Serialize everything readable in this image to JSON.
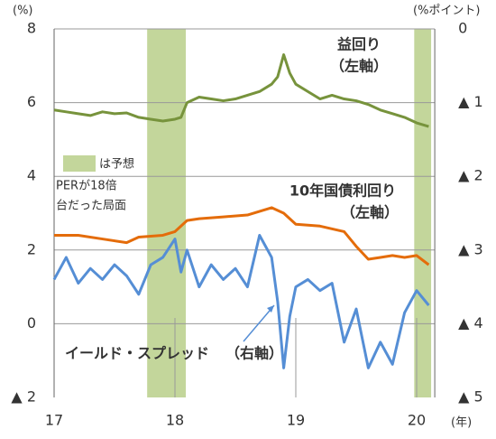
{
  "chart_data": {
    "type": "line",
    "y_unit": "(%)",
    "y2_unit": "(%ポイント)",
    "x_unit": "(年)",
    "xlim": [
      17,
      20.15
    ],
    "xticks": [
      17,
      18,
      19,
      20
    ],
    "ylim": [
      -2,
      8
    ],
    "yticks": [
      {
        "value": -2,
        "label": "▲ 2"
      },
      0,
      2,
      4,
      6,
      8
    ],
    "y2lim": [
      -5,
      0
    ],
    "y2ticks": [
      {
        "value": -5,
        "label": "▲ 5"
      },
      {
        "value": -4,
        "label": "▲ 4"
      },
      {
        "value": -3,
        "label": "▲ 3"
      },
      {
        "value": -2,
        "label": "▲ 2"
      },
      {
        "value": -1,
        "label": "▲ 1"
      },
      0
    ],
    "grid": true,
    "shaded_ranges": [
      [
        17.77,
        18.09
      ],
      [
        19.98,
        20.12
      ]
    ],
    "shade_color": "#c3d69b",
    "shade_legend": "は予想",
    "shade_note": [
      "PERが18倍",
      "台だった局面"
    ],
    "series": [
      {
        "name": "益回り",
        "axis_note": "（左軸）",
        "color": "#77933c",
        "x": [
          17.0,
          17.1,
          17.2,
          17.3,
          17.4,
          17.5,
          17.6,
          17.7,
          17.8,
          17.9,
          18.0,
          18.05,
          18.1,
          18.2,
          18.3,
          18.4,
          18.5,
          18.6,
          18.7,
          18.8,
          18.85,
          18.9,
          18.95,
          19.0,
          19.1,
          19.2,
          19.3,
          19.4,
          19.5,
          19.6,
          19.7,
          19.8,
          19.9,
          20.0,
          20.1
        ],
        "values": [
          5.8,
          5.75,
          5.7,
          5.65,
          5.75,
          5.7,
          5.72,
          5.6,
          5.55,
          5.5,
          5.55,
          5.6,
          6.0,
          6.15,
          6.1,
          6.05,
          6.1,
          6.2,
          6.3,
          6.5,
          6.7,
          7.3,
          6.8,
          6.5,
          6.3,
          6.1,
          6.2,
          6.1,
          6.05,
          5.95,
          5.8,
          5.7,
          5.6,
          5.45,
          5.35
        ]
      },
      {
        "name": "10年国債利回り",
        "axis_note": "（左軸）",
        "color": "#e46c0a",
        "x": [
          17.0,
          17.2,
          17.4,
          17.6,
          17.7,
          17.9,
          18.0,
          18.1,
          18.2,
          18.4,
          18.6,
          18.8,
          18.9,
          19.0,
          19.2,
          19.4,
          19.5,
          19.6,
          19.7,
          19.8,
          19.9,
          20.0,
          20.1
        ],
        "values": [
          2.4,
          2.4,
          2.3,
          2.2,
          2.35,
          2.4,
          2.5,
          2.8,
          2.85,
          2.9,
          2.95,
          3.15,
          3.0,
          2.7,
          2.65,
          2.5,
          2.1,
          1.75,
          1.8,
          1.85,
          1.8,
          1.85,
          1.6
        ]
      },
      {
        "name": "イールド・スプレッド",
        "axis_note": "（右軸）",
        "color": "#558ed5",
        "axis": "y2",
        "x": [
          17.0,
          17.1,
          17.2,
          17.3,
          17.4,
          17.5,
          17.6,
          17.7,
          17.8,
          17.9,
          18.0,
          18.05,
          18.1,
          18.2,
          18.3,
          18.4,
          18.5,
          18.6,
          18.7,
          18.8,
          18.85,
          18.9,
          18.95,
          19.0,
          19.1,
          19.2,
          19.3,
          19.4,
          19.5,
          19.6,
          19.7,
          19.8,
          19.9,
          20.0,
          20.1
        ],
        "values": [
          -3.4,
          -3.1,
          -3.45,
          -3.25,
          -3.4,
          -3.2,
          -3.35,
          -3.6,
          -3.2,
          -3.1,
          -2.85,
          -3.3,
          -3.0,
          -3.5,
          -3.2,
          -3.4,
          -3.25,
          -3.5,
          -2.8,
          -3.1,
          -3.7,
          -4.6,
          -3.9,
          -3.5,
          -3.4,
          -3.55,
          -3.45,
          -4.25,
          -3.8,
          -4.6,
          -4.25,
          -4.55,
          -3.85,
          -3.55,
          -3.75
        ]
      }
    ]
  }
}
